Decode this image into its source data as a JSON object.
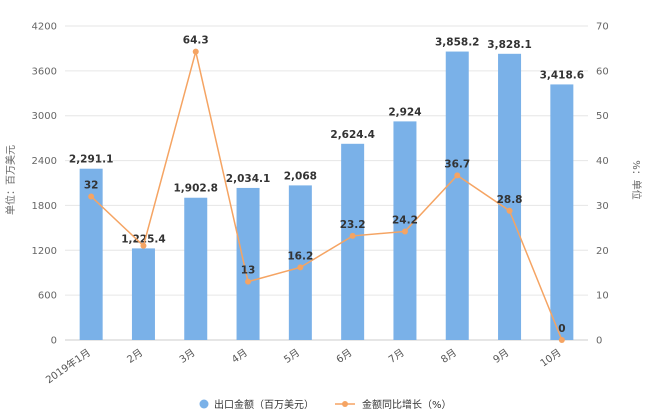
{
  "chart_data": {
    "type": "bar",
    "categories": [
      "2019年1月",
      "2月",
      "3月",
      "4月",
      "5月",
      "6月",
      "7月",
      "8月",
      "9月",
      "10月"
    ],
    "series": [
      {
        "name": "出口金额（百万美元）",
        "type": "bar",
        "axis": "left",
        "values": [
          2291.1,
          1225.4,
          1902.8,
          2034.1,
          2068,
          2624.4,
          2924,
          3858.2,
          3828.1,
          3418.6
        ],
        "labels": [
          "2,291.1",
          "1,225.4",
          "1,902.8",
          "2,034.1",
          "2,068",
          "2,624.4",
          "2,924",
          "3,858.2",
          "3,828.1",
          "3,418.6"
        ],
        "color": "#7ab1e8"
      },
      {
        "name": "金额同比增长（%）",
        "type": "line",
        "axis": "right",
        "values": [
          32,
          21,
          64.3,
          13,
          16.2,
          23.2,
          24.2,
          36.7,
          28.8,
          0
        ],
        "labels": [
          "32",
          "",
          "64.3",
          "13",
          "16.2",
          "23.2",
          "24.2",
          "36.7",
          "28.8",
          "0"
        ],
        "color": "#f5a463"
      }
    ],
    "ylabel_left": "单位：百万美元",
    "ylabel_right": "%：单位",
    "ylim_left": [
      0,
      4200
    ],
    "yticks_left": [
      "0",
      "600",
      "1200",
      "1800",
      "2400",
      "3000",
      "3600",
      "4200"
    ],
    "ylim_right": [
      0,
      70
    ],
    "yticks_right": [
      "0",
      "10",
      "20",
      "30",
      "40",
      "50",
      "60",
      "70"
    ],
    "grid": true,
    "legend_position": "bottom"
  }
}
